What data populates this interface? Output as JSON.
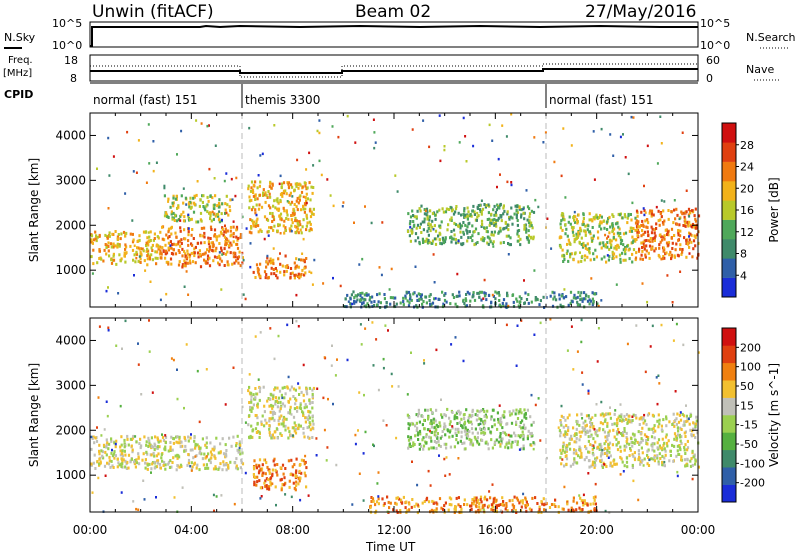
{
  "header": {
    "title": "Unwin (fitACF)",
    "beam": "Beam 02",
    "date": "27/May/2016"
  },
  "top_panels": {
    "nsky": {
      "label": "N.Sky",
      "right_label": "N.Search",
      "tick_top": "10^5",
      "tick_bottom": "10^0"
    },
    "freq": {
      "label": "Freq.",
      "unit": "[MHz]",
      "left_ticks": [
        "18",
        "8"
      ],
      "right_ticks": [
        "60",
        "0"
      ],
      "right_label": "Nave"
    },
    "cpid": {
      "label": "CPID",
      "segments": [
        {
          "label": "normal (fast) 151",
          "start": 0
        },
        {
          "label": "themis 3300",
          "start": 6
        },
        {
          "label": "normal (fast) 151",
          "start": 18
        }
      ]
    }
  },
  "chart_data": [
    {
      "type": "heatmap",
      "panel": "power",
      "xlabel": "",
      "ylabel": "Slant Range [km]",
      "x_range_hours": [
        0,
        24
      ],
      "ylim": [
        180,
        4500
      ],
      "yticks": [
        1000,
        2000,
        3000,
        4000
      ],
      "colorbar": {
        "label": "Power [dB]",
        "ticks": [
          "4",
          "8",
          "12",
          "16",
          "20",
          "24",
          "28"
        ],
        "colors": [
          "#1a2dd8",
          "#2f5fa8",
          "#3f8a6a",
          "#4fa85a",
          "#b8c92a",
          "#f2b21a",
          "#f07a10",
          "#e04010",
          "#d01010"
        ]
      },
      "echo_regions": [
        {
          "t0": 0.0,
          "t1": 2.8,
          "r0": 1150,
          "r1": 1900,
          "level": 5
        },
        {
          "t0": 2.8,
          "t1": 6.0,
          "r0": 1100,
          "r1": 2000,
          "level": 6
        },
        {
          "t0": 2.9,
          "t1": 5.5,
          "r0": 2100,
          "r1": 2700,
          "level": 4
        },
        {
          "t0": 6.2,
          "t1": 8.8,
          "r0": 1850,
          "r1": 3000,
          "level": 5
        },
        {
          "t0": 6.4,
          "t1": 8.5,
          "r0": 850,
          "r1": 1350,
          "level": 6
        },
        {
          "t0": 12.5,
          "t1": 17.5,
          "r0": 1600,
          "r1": 2500,
          "level": 3
        },
        {
          "t0": 18.5,
          "t1": 21.5,
          "r0": 1200,
          "r1": 2300,
          "level": 4
        },
        {
          "t0": 21.5,
          "t1": 24.0,
          "r0": 1250,
          "r1": 2400,
          "level": 6
        },
        {
          "t0": 10.0,
          "t1": 20.0,
          "r0": 200,
          "r1": 550,
          "level": 2
        }
      ]
    },
    {
      "type": "heatmap",
      "panel": "velocity",
      "xlabel": "Time UT",
      "ylabel": "Slant Range [km]",
      "x_range_hours": [
        0,
        24
      ],
      "xticks": [
        "00:00",
        "04:00",
        "08:00",
        "12:00",
        "16:00",
        "20:00",
        "00:00"
      ],
      "ylim": [
        180,
        4500
      ],
      "yticks": [
        1000,
        2000,
        3000,
        4000
      ],
      "colorbar": {
        "label": "Velocity [m s^-1]",
        "ticks": [
          "200",
          "100",
          "50",
          "15",
          "-15",
          "-50",
          "-100",
          "-200"
        ],
        "colors": [
          "#1a2dd8",
          "#2f5fa8",
          "#3f8a6a",
          "#55b040",
          "#9bd050",
          "#c0c0b8",
          "#f2c030",
          "#f08010",
          "#e04010",
          "#d01010"
        ]
      },
      "echo_regions": [
        {
          "t0": 0.0,
          "t1": 6.0,
          "r0": 1150,
          "r1": 1900,
          "level": 5
        },
        {
          "t0": 6.2,
          "t1": 8.8,
          "r0": 1850,
          "r1": 3000,
          "level": 5
        },
        {
          "t0": 6.4,
          "t1": 8.5,
          "r0": 700,
          "r1": 1400,
          "level": 7
        },
        {
          "t0": 12.5,
          "t1": 17.5,
          "r0": 1600,
          "r1": 2500,
          "level": 4
        },
        {
          "t0": 18.5,
          "t1": 24.0,
          "r0": 1200,
          "r1": 2400,
          "level": 5
        },
        {
          "t0": 11.0,
          "t1": 20.0,
          "r0": 200,
          "r1": 550,
          "level": 7
        }
      ]
    }
  ]
}
